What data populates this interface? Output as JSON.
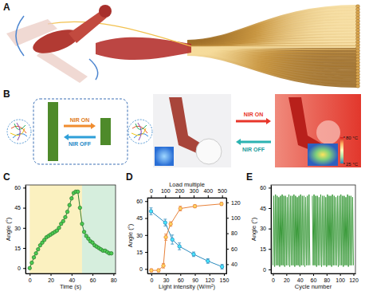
{
  "figure": {
    "panel_labels": [
      "A",
      "B"
    ],
    "nir_on_left": "NIR ON",
    "nir_off_left": "NIR OFF",
    "nir_on_right": "NIR ON",
    "nir_off_right": "NIR OFF",
    "colorbar_range": [
      25,
      80
    ],
    "colorbar_ticks": [
      {
        "value": 80,
        "label": "80 °C"
      },
      {
        "value": 25,
        "label": "25 °C"
      }
    ]
  },
  "chart_data": [
    {
      "type": "line",
      "title": "C",
      "x_label": "Time (s)",
      "y_label": "Angle (°)",
      "xlim": [
        -4,
        82
      ],
      "xticks": [
        0,
        20,
        40,
        60,
        80
      ],
      "ylim": [
        -4,
        62
      ],
      "yticks": [
        0,
        15,
        30,
        45,
        60
      ],
      "marker": "circle",
      "shaded_regions": [
        {
          "from": 0,
          "to": 50,
          "color": "#fbf1c0"
        },
        {
          "from": 50,
          "to": 82,
          "color": "#d6eedd"
        }
      ],
      "x": [
        0,
        2,
        4,
        6,
        8,
        10,
        12,
        14,
        16,
        18,
        20,
        22,
        24,
        26,
        28,
        30,
        32,
        34,
        36,
        38,
        40,
        42,
        44,
        46,
        48,
        50,
        52,
        54,
        56,
        58,
        60,
        62,
        64,
        66,
        68,
        70,
        72,
        74,
        76,
        78
      ],
      "series": [
        {
          "color": "#2e7d32",
          "values": [
            0,
            4,
            8,
            11,
            14,
            17,
            19,
            21,
            23,
            24,
            25,
            26,
            27,
            28,
            30,
            33,
            35,
            38,
            42,
            47,
            52,
            56,
            57,
            57,
            45,
            33,
            27,
            24,
            22,
            20,
            19,
            17,
            16,
            15,
            14,
            13,
            13,
            12,
            11,
            11
          ]
        }
      ]
    },
    {
      "type": "line",
      "title": "D",
      "x_label": "Light intensity (W/m²)",
      "x2_label": "Load multiple",
      "y_label": "Angle (°)",
      "xlim": [
        -8,
        155
      ],
      "xticks": [
        0,
        30,
        60,
        90,
        120,
        150
      ],
      "x2lim": [
        -25,
        530
      ],
      "x2ticks": [
        0,
        100,
        200,
        300,
        400,
        500
      ],
      "ylim": [
        -4,
        63
      ],
      "yticks": [
        0,
        15,
        30,
        45,
        60
      ],
      "y2lim": [
        28,
        126
      ],
      "y2ticks": [
        40,
        60,
        80,
        100,
        120
      ],
      "marker": "circle",
      "series": [
        {
          "axis": "x2",
          "color": "#2b8cbe",
          "x": [
            0,
            100,
            150,
            200,
            300,
            400,
            500
          ],
          "values": [
            51,
            41,
            26,
            20,
            13,
            7,
            2
          ],
          "errors": [
            3,
            3,
            4,
            3,
            2,
            2,
            2
          ]
        },
        {
          "axis": "y2",
          "color": "#e8823a",
          "x": [
            0,
            15,
            25,
            30,
            40,
            60,
            90,
            145
          ],
          "values": [
            32,
            32,
            38,
            75,
            92,
            112,
            115,
            118
          ],
          "errors": [
            2,
            2,
            3,
            4,
            3,
            3,
            2,
            2
          ]
        }
      ]
    },
    {
      "type": "line",
      "title": "E",
      "x_label": "Cycle number",
      "y_label": "Angle (°)",
      "xlim": [
        -3,
        123
      ],
      "xticks": [
        0,
        20,
        40,
        60,
        80,
        100,
        120
      ],
      "ylim": [
        -3,
        62
      ],
      "yticks": [
        0,
        15,
        30,
        45,
        60
      ],
      "x": [
        0,
        1.25,
        2.5,
        3.75,
        5,
        6.25,
        7.5,
        8.75,
        10,
        11.25,
        12.5,
        13.75,
        15,
        16.25,
        17.5,
        18.75,
        20,
        21.25,
        22.5,
        23.75,
        25,
        26.25,
        27.5,
        28.75,
        30,
        31.25,
        32.5,
        33.75,
        35,
        36.25,
        37.5,
        38.75,
        40,
        41.25,
        42.5,
        43.75,
        45,
        46.25,
        47.5,
        48.75,
        50,
        51.25,
        52.5,
        53.75,
        55,
        56.25,
        57.5,
        58.75,
        60,
        61.25,
        62.5,
        63.75,
        65,
        66.25,
        67.5,
        68.75,
        70,
        71.25,
        72.5,
        73.75,
        75,
        76.25,
        77.5,
        78.75,
        80,
        81.25,
        82.5,
        83.75,
        85,
        86.25,
        87.5,
        88.75,
        90,
        91.25,
        92.5,
        93.75,
        95,
        96.25,
        97.5,
        98.75,
        100,
        101.25,
        102.5,
        103.75,
        105,
        106.25,
        107.5,
        108.75,
        110,
        111.25,
        112.5,
        113.75,
        115,
        116.25,
        117.5,
        118.75,
        120
      ],
      "series": [
        {
          "color": "#3a9a3a",
          "values": [
            3,
            54,
            2,
            55,
            3,
            54,
            3,
            53,
            2,
            54,
            3,
            55,
            3,
            54,
            2,
            54,
            3,
            53,
            3,
            55,
            2,
            54,
            3,
            54,
            3,
            55,
            2,
            54,
            3,
            53,
            3,
            54,
            2,
            55,
            3,
            54,
            3,
            54,
            2,
            53,
            3,
            54,
            3,
            55,
            3,
            null,
            null,
            54,
            3,
            55,
            3,
            54,
            2,
            54,
            3,
            53,
            3,
            55,
            2,
            54,
            3,
            54,
            3,
            53,
            2,
            55,
            3,
            54,
            3,
            54,
            2,
            55,
            3,
            54,
            3,
            53,
            3,
            54,
            2,
            54,
            3,
            55,
            3,
            54,
            2,
            54,
            3,
            53,
            3,
            55,
            2,
            54,
            3,
            54,
            3,
            53,
            3
          ]
        }
      ]
    }
  ]
}
